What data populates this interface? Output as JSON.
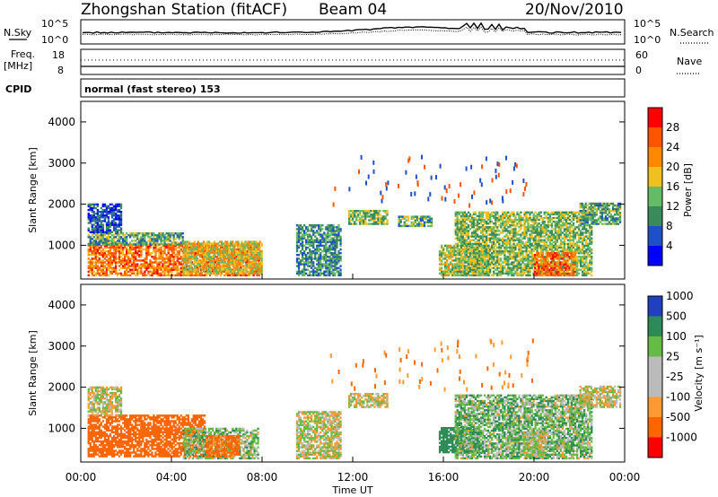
{
  "header": {
    "station": "Zhongshan Station (fitACF)",
    "beam": "Beam 04",
    "date": "20/Nov/2010"
  },
  "top_panels": {
    "nsky_label": "N.Sky",
    "nsearch_label": "N.Search",
    "noise_ticks": [
      "10^5",
      "10^0"
    ],
    "freq_label": "Freq.",
    "freq_unit": "[MHz]",
    "freq_ticks": [
      "18",
      "8"
    ],
    "nave_label": "Nave",
    "nave_ticks": [
      "60",
      "0"
    ],
    "cpid_label": "CPID",
    "cpid_text": "normal (fast stereo) 153"
  },
  "colors": {
    "power": [
      "#0000ff",
      "#2050c8",
      "#3a8a5a",
      "#66bb66",
      "#f0c020",
      "#ff8800",
      "#ff5500",
      "#ff0000"
    ],
    "velocity": [
      "#ff0000",
      "#ff6600",
      "#ff9933",
      "#bbbbbb",
      "#bbbbbb",
      "#66bb44",
      "#2e8b57",
      "#2040c0"
    ]
  },
  "chart_data": [
    {
      "type": "heatmap",
      "name": "power",
      "ylabel": "Slant Range [km]",
      "xlabel": "",
      "ylim": [
        180,
        4500
      ],
      "xlim": [
        0,
        24
      ],
      "yticks": [
        "1000",
        "2000",
        "3000",
        "4000"
      ],
      "xticks": [],
      "colorbar_label": "Power [dB]",
      "colorbar_ticks": [
        "4",
        "8",
        "12",
        "16",
        "20",
        "24",
        "28"
      ],
      "colorbar_range": [
        0,
        30
      ],
      "regions": [
        {
          "t0": 0.3,
          "t1": 7.9,
          "r0": 250,
          "r1": 1050,
          "level": 24
        },
        {
          "t0": 0.3,
          "t1": 4.5,
          "r0": 1000,
          "r1": 1300,
          "level": 12
        },
        {
          "t0": 0.3,
          "t1": 1.8,
          "r0": 1300,
          "r1": 2000,
          "level": 6
        },
        {
          "t0": 4.5,
          "t1": 8.0,
          "r0": 300,
          "r1": 1100,
          "level": 18
        },
        {
          "t0": 9.5,
          "t1": 11.5,
          "r0": 250,
          "r1": 1500,
          "level": 10
        },
        {
          "t0": 11.8,
          "t1": 13.5,
          "r0": 1500,
          "r1": 1850,
          "level": 14
        },
        {
          "t0": 14.0,
          "t1": 15.5,
          "r0": 1450,
          "r1": 1700,
          "level": 12
        },
        {
          "t0": 15.8,
          "t1": 18.0,
          "r0": 250,
          "r1": 1000,
          "level": 16
        },
        {
          "t0": 16.5,
          "t1": 22.5,
          "r0": 250,
          "r1": 1800,
          "level": 14
        },
        {
          "t0": 20.0,
          "t1": 21.8,
          "r0": 250,
          "r1": 800,
          "level": 24
        },
        {
          "t0": 22.0,
          "t1": 23.8,
          "r0": 1500,
          "r1": 2000,
          "level": 12
        }
      ]
    },
    {
      "type": "heatmap",
      "name": "velocity",
      "ylabel": "Slant Range [km]",
      "xlabel": "Time UT",
      "ylim": [
        180,
        4500
      ],
      "xlim": [
        0,
        24
      ],
      "yticks": [
        "1000",
        "2000",
        "3000",
        "4000"
      ],
      "xticks": [
        "00:00",
        "04:00",
        "08:00",
        "12:00",
        "16:00",
        "20:00",
        "00:00"
      ],
      "colorbar_label": "Velocity [m s⁻¹]",
      "colorbar_ticks": [
        "1000",
        "500",
        "100",
        "25",
        "-25",
        "-100",
        "-500",
        "-1000"
      ],
      "regions": [
        {
          "t0": 0.3,
          "t1": 5.5,
          "r0": 300,
          "r1": 1300,
          "level": -300
        },
        {
          "t0": 0.3,
          "t1": 1.8,
          "r0": 1300,
          "r1": 2000,
          "level": 0
        },
        {
          "t0": 4.5,
          "t1": 7.8,
          "r0": 250,
          "r1": 1000,
          "level": 50
        },
        {
          "t0": 5.5,
          "t1": 7.0,
          "r0": 300,
          "r1": 800,
          "level": -150
        },
        {
          "t0": 9.5,
          "t1": 11.5,
          "r0": 250,
          "r1": 1400,
          "level": 0
        },
        {
          "t0": 11.8,
          "t1": 13.5,
          "r0": 1500,
          "r1": 1850,
          "level": 0
        },
        {
          "t0": 15.8,
          "t1": 17.5,
          "r0": 400,
          "r1": 1000,
          "level": 300
        },
        {
          "t0": 16.5,
          "t1": 22.5,
          "r0": 250,
          "r1": 1800,
          "level": 60
        },
        {
          "t0": 19.5,
          "t1": 20.5,
          "r0": 300,
          "r1": 900,
          "level": 0
        },
        {
          "t0": 22.0,
          "t1": 23.8,
          "r0": 1500,
          "r1": 2000,
          "level": 0
        }
      ]
    }
  ]
}
